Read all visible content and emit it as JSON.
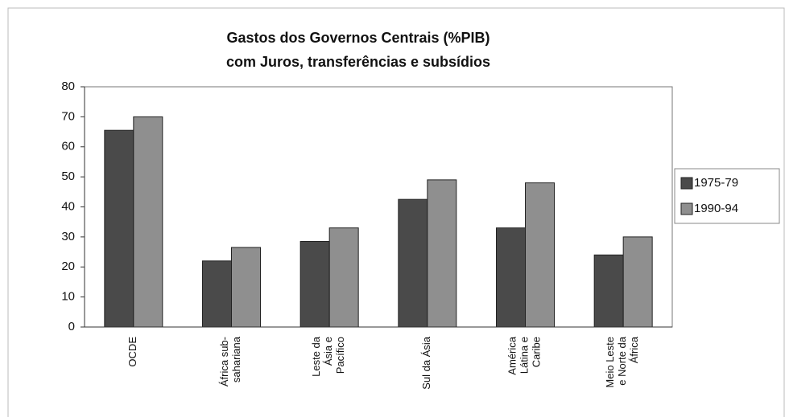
{
  "chart_data": {
    "type": "bar",
    "title": "Gastos dos Governos Centrais (%PIB)",
    "subtitle": "com Juros, transferências e subsídios",
    "categories": [
      "OCDE",
      "África sub-\nsahariana",
      "Leste da\nÁsia e\nPacífico",
      "Sul da Ásia",
      "América\nLátina e\nCaribe",
      "Meio Leste\ne Norte da\nÁfrica"
    ],
    "series": [
      {
        "name": "1975-79",
        "color": "#4a4a4a",
        "values": [
          65.5,
          22,
          28.5,
          42.5,
          33,
          24
        ]
      },
      {
        "name": "1990-94",
        "color": "#8f8f8f",
        "values": [
          70,
          26.5,
          33,
          49,
          48,
          30
        ]
      }
    ],
    "ylim": [
      0,
      80
    ],
    "yticks": [
      0,
      10,
      20,
      30,
      40,
      50,
      60,
      70,
      80
    ],
    "legend": "right"
  }
}
